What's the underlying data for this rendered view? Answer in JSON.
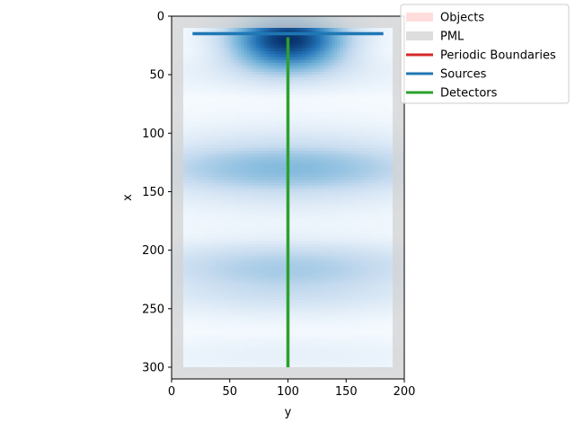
{
  "chart_data": {
    "type": "heatmap",
    "title": "",
    "xlabel": "y",
    "ylabel": "x",
    "xlim": [
      0,
      200
    ],
    "ylim": [
      310,
      0
    ],
    "x_ticks": [
      0,
      50,
      100,
      150,
      200
    ],
    "y_ticks": [
      0,
      50,
      100,
      150,
      200,
      250,
      300
    ],
    "x_tick_labels": [
      "0",
      "50",
      "100",
      "150",
      "200"
    ],
    "y_tick_labels": [
      "0",
      "50",
      "100",
      "150",
      "200",
      "250",
      "300"
    ],
    "grid": false,
    "field": {
      "colormap": "Blues",
      "source_row": 15,
      "beam_center_y": 100,
      "wave_band_centers_x": [
        20,
        130,
        210,
        235
      ],
      "wave_band_strengths": [
        1.0,
        0.35,
        0.18,
        0.2
      ]
    },
    "pml": {
      "thickness": 10,
      "color": "#d3d3d3",
      "y_extent": [
        0,
        200
      ],
      "x_extent": [
        0,
        310
      ]
    },
    "sources": [
      {
        "orientation": "horizontal",
        "x": 15,
        "y_start": 18,
        "y_end": 182,
        "color": "#1f77b4"
      }
    ],
    "detectors": [
      {
        "orientation": "vertical",
        "y": 100,
        "x_start": 18,
        "x_end": 300,
        "color": "#2ca02c"
      }
    ],
    "legend": {
      "placement": "top-right",
      "entries": [
        {
          "label": "Objects",
          "color": "#ffdddd",
          "style": "patch"
        },
        {
          "label": "PML",
          "color": "#dddddd",
          "style": "patch"
        },
        {
          "label": "Periodic Boundaries",
          "color": "#d62728",
          "style": "line"
        },
        {
          "label": "Sources",
          "color": "#1f77b4",
          "style": "line"
        },
        {
          "label": "Detectors",
          "color": "#2ca02c",
          "style": "line"
        }
      ]
    }
  }
}
